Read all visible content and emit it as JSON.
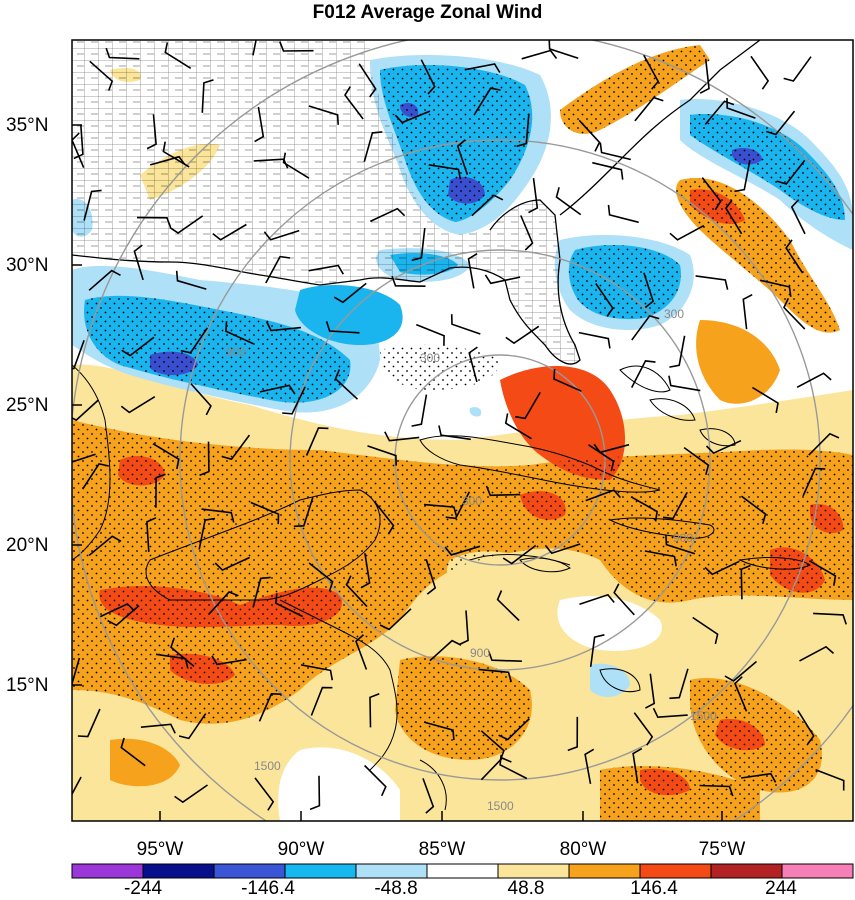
{
  "title": "F012 Average Zonal Wind",
  "map": {
    "latitude_labels": [
      "35°N",
      "30°N",
      "25°N",
      "20°N",
      "15°N"
    ],
    "longitude_labels": [
      "95°W",
      "90°W",
      "85°W",
      "80°W",
      "75°W"
    ],
    "latitude_values": [
      35,
      30,
      25,
      20,
      15
    ],
    "longitude_values": [
      -95,
      -90,
      -85,
      -80,
      -75
    ],
    "range_ring_labels": [
      "300",
      "300",
      "300",
      "900",
      "900",
      "900",
      "1500",
      "1500",
      "1500"
    ],
    "colors": {
      "strong_negative": "#3a4fd0",
      "negative": "#1ab4ee",
      "weak_negative": "#aee0f7",
      "weak_positive": "#fbe59a",
      "positive": "#f7a21c",
      "strong_positive": "#f25020",
      "extreme_positive": "#c43030"
    }
  },
  "colorbar": {
    "tick_labels": [
      "-244",
      "-146.4",
      "-48.8",
      "48.8",
      "146.4",
      "244"
    ],
    "colors": [
      "#9b37d8",
      "#080f8a",
      "#3a55d6",
      "#17b7ef",
      "#aee0f7",
      "#ffffff",
      "#fbe59a",
      "#f7a21c",
      "#f44a16",
      "#b22222",
      "#f57fb6"
    ]
  }
}
